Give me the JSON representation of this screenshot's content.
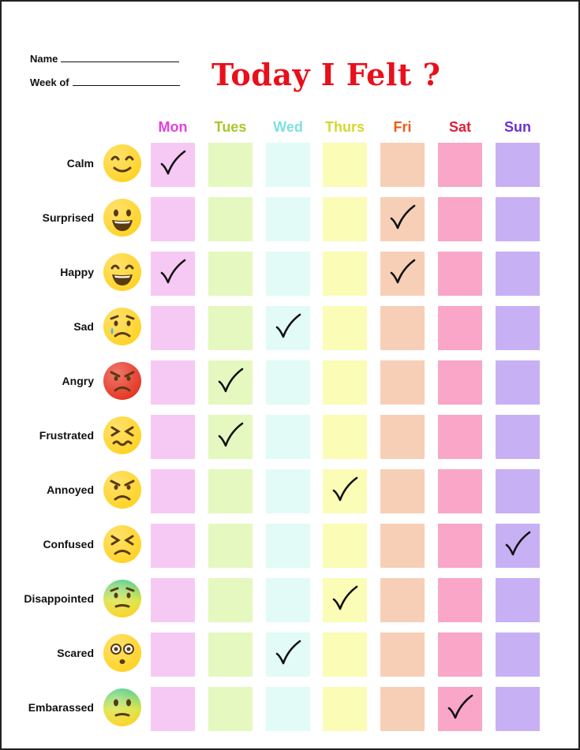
{
  "header": {
    "name_label": "Name",
    "week_label": "Week of",
    "title": "Today I Felt ?"
  },
  "days": [
    {
      "label": "Mon",
      "color": "#e53fe0",
      "cell_color": "#f6c9f5"
    },
    {
      "label": "Tues",
      "color": "#a9c72a",
      "cell_color": "#e5f8bf"
    },
    {
      "label": "Wed",
      "color": "#7fe0e0",
      "cell_color": "#e2fbf6"
    },
    {
      "label": "Thurs",
      "color": "#d6d82e",
      "cell_color": "#fbfcb5"
    },
    {
      "label": "Fri",
      "color": "#ee5a16",
      "cell_color": "#f7cfb7"
    },
    {
      "label": "Sat",
      "color": "#e0203a",
      "cell_color": "#f9a6c8"
    },
    {
      "label": "Sun",
      "color": "#6a30d8",
      "cell_color": "#c8b0f5"
    }
  ],
  "feelings": [
    {
      "label": "Calm",
      "icon": "calm-face-icon",
      "checked": [
        0
      ]
    },
    {
      "label": "Surprised",
      "icon": "surprised-face-icon",
      "checked": [
        4
      ]
    },
    {
      "label": "Happy",
      "icon": "happy-face-icon",
      "checked": [
        0,
        4
      ]
    },
    {
      "label": "Sad",
      "icon": "sad-face-icon",
      "checked": [
        2
      ]
    },
    {
      "label": "Angry",
      "icon": "angry-face-icon",
      "checked": [
        1
      ]
    },
    {
      "label": "Frustrated",
      "icon": "frustrated-face-icon",
      "checked": [
        1
      ]
    },
    {
      "label": "Annoyed",
      "icon": "annoyed-face-icon",
      "checked": [
        3
      ]
    },
    {
      "label": "Confused",
      "icon": "confused-face-icon",
      "checked": [
        6
      ]
    },
    {
      "label": "Disappointed",
      "icon": "disappointed-face-icon",
      "checked": [
        3
      ]
    },
    {
      "label": "Scared",
      "icon": "scared-face-icon",
      "checked": [
        2
      ]
    },
    {
      "label": "Embarassed",
      "icon": "embarrassed-face-icon",
      "checked": [
        5
      ]
    }
  ]
}
